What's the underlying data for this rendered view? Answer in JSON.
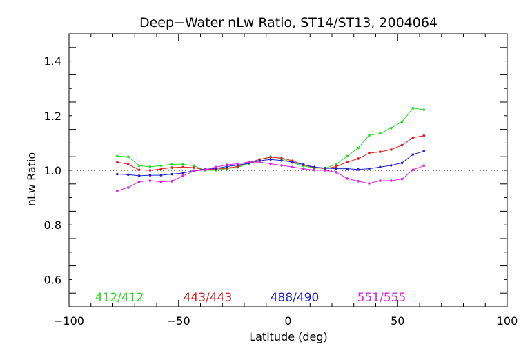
{
  "chart_data": {
    "type": "line",
    "title": "Deep−Water nLw Ratio, ST14/ST13, 2004064",
    "xlabel": "Latitude (deg)",
    "ylabel": "nLw Ratio",
    "xlim": [
      -100,
      100
    ],
    "ylim": [
      0.5,
      1.5
    ],
    "x_ticks": [
      -100,
      -50,
      0,
      50,
      100
    ],
    "x_tick_labels": [
      "−100",
      "−50",
      "0",
      "50",
      "100"
    ],
    "y_ticks": [
      0.6,
      0.8,
      1.0,
      1.2,
      1.4
    ],
    "y_tick_labels": [
      "0.6",
      "0.8",
      "1.0",
      "1.2",
      "1.4"
    ],
    "reference_line": 1.0,
    "grid": false,
    "x": [
      -78,
      -73,
      -68,
      -63,
      -58,
      -53,
      -48,
      -43,
      -38,
      -33,
      -28,
      -23,
      -18,
      -13,
      -8,
      -3,
      2,
      7,
      12,
      17,
      22,
      27,
      32,
      37,
      42,
      47,
      52,
      57,
      62
    ],
    "series": [
      {
        "name": "412/412",
        "color": "#22dd22",
        "values": [
          1.052,
          1.05,
          1.017,
          1.013,
          1.017,
          1.022,
          1.022,
          1.017,
          1.0,
          1.0,
          1.006,
          1.011,
          1.025,
          1.04,
          1.05,
          1.043,
          1.028,
          1.016,
          1.008,
          1.008,
          1.022,
          1.052,
          1.082,
          1.128,
          1.135,
          1.155,
          1.178,
          1.228,
          1.222
        ]
      },
      {
        "name": "443/443",
        "color": "#dd2222",
        "values": [
          1.03,
          1.022,
          1.002,
          1.0,
          1.005,
          1.01,
          1.012,
          1.01,
          1.002,
          1.004,
          1.008,
          1.014,
          1.028,
          1.04,
          1.048,
          1.045,
          1.035,
          1.02,
          1.01,
          1.006,
          1.014,
          1.03,
          1.043,
          1.063,
          1.068,
          1.076,
          1.092,
          1.12,
          1.127
        ]
      },
      {
        "name": "488/490",
        "color": "#2222cc",
        "values": [
          0.986,
          0.984,
          0.98,
          0.982,
          0.982,
          0.986,
          0.99,
          0.999,
          1.004,
          1.007,
          1.014,
          1.019,
          1.026,
          1.035,
          1.04,
          1.036,
          1.03,
          1.021,
          1.012,
          1.008,
          1.006,
          1.006,
          1.003,
          1.006,
          1.012,
          1.018,
          1.027,
          1.058,
          1.07
        ]
      },
      {
        "name": "551/555",
        "color": "#dd22dd",
        "values": [
          0.925,
          0.937,
          0.958,
          0.962,
          0.958,
          0.96,
          0.98,
          0.997,
          1.002,
          1.012,
          1.02,
          1.024,
          1.03,
          1.03,
          1.024,
          1.018,
          1.012,
          1.006,
          1.001,
          1.0,
          0.993,
          0.97,
          0.96,
          0.952,
          0.962,
          0.962,
          0.968,
          1.002,
          1.017
        ]
      }
    ]
  }
}
